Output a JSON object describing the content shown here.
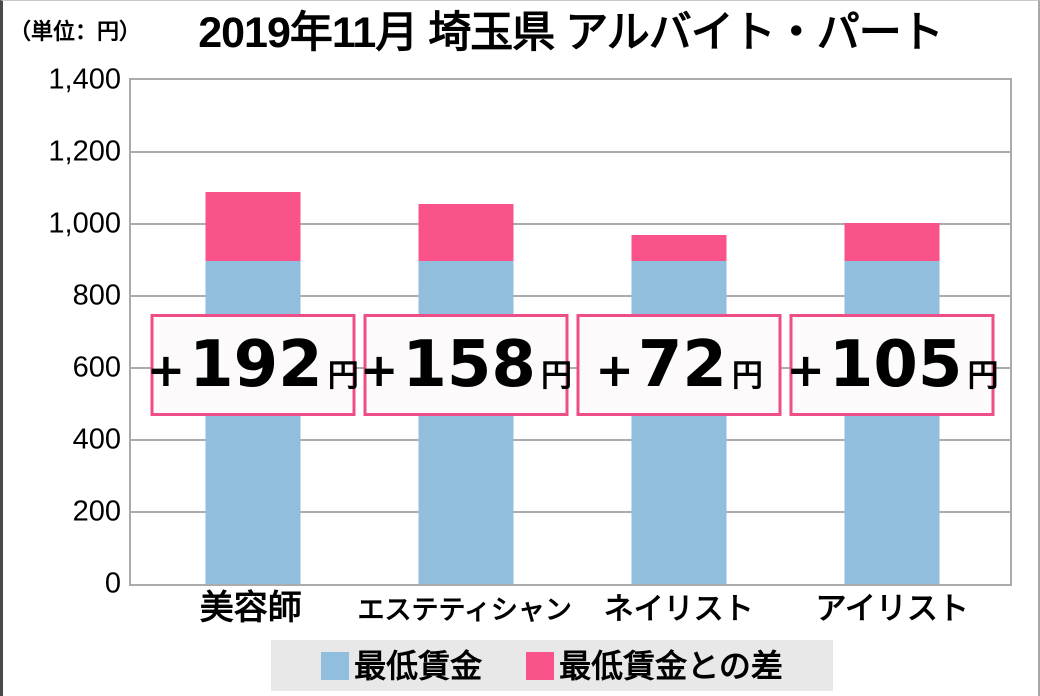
{
  "page": {
    "unit_note": "（単位：円）",
    "title": "2019年11月 埼玉県 アルバイト・パート"
  },
  "chart_data": {
    "type": "bar",
    "stacked": true,
    "title": "2019年11月 埼玉県 アルバイト・パート",
    "unit": "円",
    "categories": [
      "美容師",
      "エステティシャン",
      "ネイリスト",
      "アイリスト"
    ],
    "series": [
      {
        "name": "最低賃金",
        "color": "#92bedd",
        "values": [
          898,
          898,
          898,
          898
        ]
      },
      {
        "name": "最低賃金との差",
        "color": "#fa5389",
        "values": [
          192,
          158,
          72,
          105
        ]
      }
    ],
    "bar_totals": [
      1090,
      1056,
      970,
      1003
    ],
    "diff_labels": [
      {
        "sign": "+",
        "amount": "192",
        "unit": "円"
      },
      {
        "sign": "+",
        "amount": "158",
        "unit": "円"
      },
      {
        "sign": "+",
        "amount": "72",
        "unit": "円"
      },
      {
        "sign": "+",
        "amount": "105",
        "unit": "円"
      }
    ],
    "y_axis": {
      "min": 0,
      "max": 1400,
      "tick_step": 200,
      "tick_labels_top_to_bottom": [
        "1,400",
        "1,200",
        "1,000",
        "800",
        "600",
        "400",
        "200",
        "0"
      ]
    },
    "legend": {
      "position": "bottom",
      "items": [
        {
          "label": "最低賃金",
          "color": "#92bedd"
        },
        {
          "label": "最低賃金との差",
          "color": "#fa5389"
        }
      ]
    },
    "grid": true,
    "colors": {
      "min_wage_bar": "#92bedd",
      "diff_bar": "#fa5389",
      "diff_box_border": "#ee4e87",
      "diff_box_fill": "#fdfafb",
      "gridline": "#ababab",
      "legend_background": "#e9e8e9",
      "text": "#000000"
    }
  }
}
